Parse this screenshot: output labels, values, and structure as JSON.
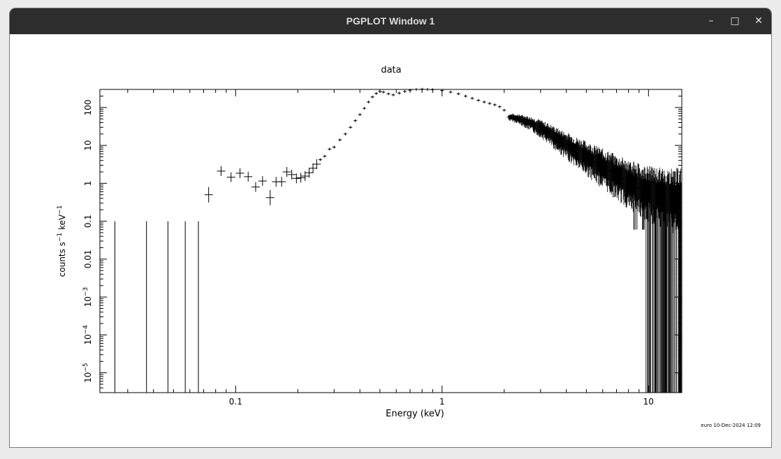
{
  "window": {
    "title": "PGPLOT Window 1",
    "controls": {
      "minimize": "–",
      "maximize": "□",
      "close": "✕"
    }
  },
  "plot": {
    "footer": "euro 10-Dec-2024 12:09"
  },
  "chart_data": {
    "type": "scatter",
    "title": "data",
    "xlabel": "Energy (keV)",
    "ylabel": "counts s-1 keV-1",
    "x_scale": "log",
    "y_scale": "log",
    "xlim": [
      0.022,
      14.5
    ],
    "ylim": [
      3e-06,
      300
    ],
    "x_ticks": [
      {
        "value": 0.1,
        "label": "0.1"
      },
      {
        "value": 1,
        "label": "1"
      },
      {
        "value": 10,
        "label": "10"
      }
    ],
    "y_ticks": [
      {
        "value": 100,
        "base": "100",
        "exp": ""
      },
      {
        "value": 10,
        "base": "10",
        "exp": ""
      },
      {
        "value": 1,
        "base": "1",
        "exp": ""
      },
      {
        "value": 0.1,
        "base": "0.1",
        "exp": ""
      },
      {
        "value": 0.01,
        "base": "0.01",
        "exp": ""
      },
      {
        "value": 0.001,
        "base": "10",
        "exp": "−3"
      },
      {
        "value": 0.0001,
        "base": "10",
        "exp": "−4"
      },
      {
        "value": 1e-05,
        "base": "10",
        "exp": "−5"
      }
    ],
    "upper_limits": [
      0.026,
      0.037,
      0.047,
      0.057,
      0.066
    ],
    "upper_limit_value": 0.1,
    "points": [
      [
        0.074,
        0.5
      ],
      [
        0.085,
        2.1
      ],
      [
        0.095,
        1.45
      ],
      [
        0.105,
        1.85
      ],
      [
        0.115,
        1.5
      ],
      [
        0.125,
        0.8
      ],
      [
        0.135,
        1.15
      ],
      [
        0.147,
        0.42
      ],
      [
        0.157,
        1.1
      ],
      [
        0.167,
        1.1
      ],
      [
        0.177,
        2.0
      ],
      [
        0.187,
        1.7
      ],
      [
        0.197,
        1.35
      ],
      [
        0.207,
        1.4
      ],
      [
        0.217,
        1.55
      ],
      [
        0.227,
        1.9
      ],
      [
        0.237,
        2.5
      ],
      [
        0.247,
        3.2
      ],
      [
        0.257,
        4.2
      ],
      [
        0.27,
        5.2
      ],
      [
        0.285,
        8.0
      ],
      [
        0.3,
        9.0
      ],
      [
        0.32,
        14
      ],
      [
        0.34,
        20
      ],
      [
        0.36,
        30
      ],
      [
        0.38,
        45
      ],
      [
        0.4,
        65
      ],
      [
        0.42,
        95
      ],
      [
        0.44,
        140
      ],
      [
        0.46,
        190
      ],
      [
        0.48,
        235
      ],
      [
        0.5,
        265
      ],
      [
        0.52,
        255
      ],
      [
        0.55,
        230
      ],
      [
        0.58,
        215
      ],
      [
        0.62,
        240
      ],
      [
        0.66,
        265
      ],
      [
        0.7,
        285
      ],
      [
        0.75,
        300
      ],
      [
        0.8,
        305
      ],
      [
        0.85,
        300
      ],
      [
        0.9,
        295
      ],
      [
        1.0,
        280
      ],
      [
        1.1,
        255
      ],
      [
        1.2,
        230
      ],
      [
        1.3,
        200
      ],
      [
        1.4,
        175
      ],
      [
        1.5,
        155
      ],
      [
        1.6,
        140
      ],
      [
        1.7,
        128
      ],
      [
        1.8,
        118
      ],
      [
        1.9,
        105
      ],
      [
        2.0,
        85
      ],
      [
        2.1,
        56
      ],
      [
        2.2,
        55
      ],
      [
        2.3,
        52
      ],
      [
        2.5,
        45
      ],
      [
        2.7,
        38
      ],
      [
        3.0,
        29
      ],
      [
        3.3,
        21
      ],
      [
        3.6,
        15
      ],
      [
        4.0,
        10.5
      ],
      [
        4.5,
        7.0
      ],
      [
        5.0,
        5.0
      ],
      [
        5.5,
        3.6
      ],
      [
        6.0,
        2.7
      ],
      [
        6.5,
        2.1
      ],
      [
        7.0,
        1.6
      ],
      [
        7.5,
        1.3
      ],
      [
        8.0,
        1.05
      ],
      [
        8.5,
        0.9
      ],
      [
        9.0,
        0.75
      ],
      [
        9.5,
        0.65
      ],
      [
        10.0,
        0.6
      ],
      [
        11.0,
        0.5
      ],
      [
        12.0,
        0.45
      ],
      [
        13.0,
        0.42
      ],
      [
        14.0,
        0.4
      ]
    ]
  }
}
